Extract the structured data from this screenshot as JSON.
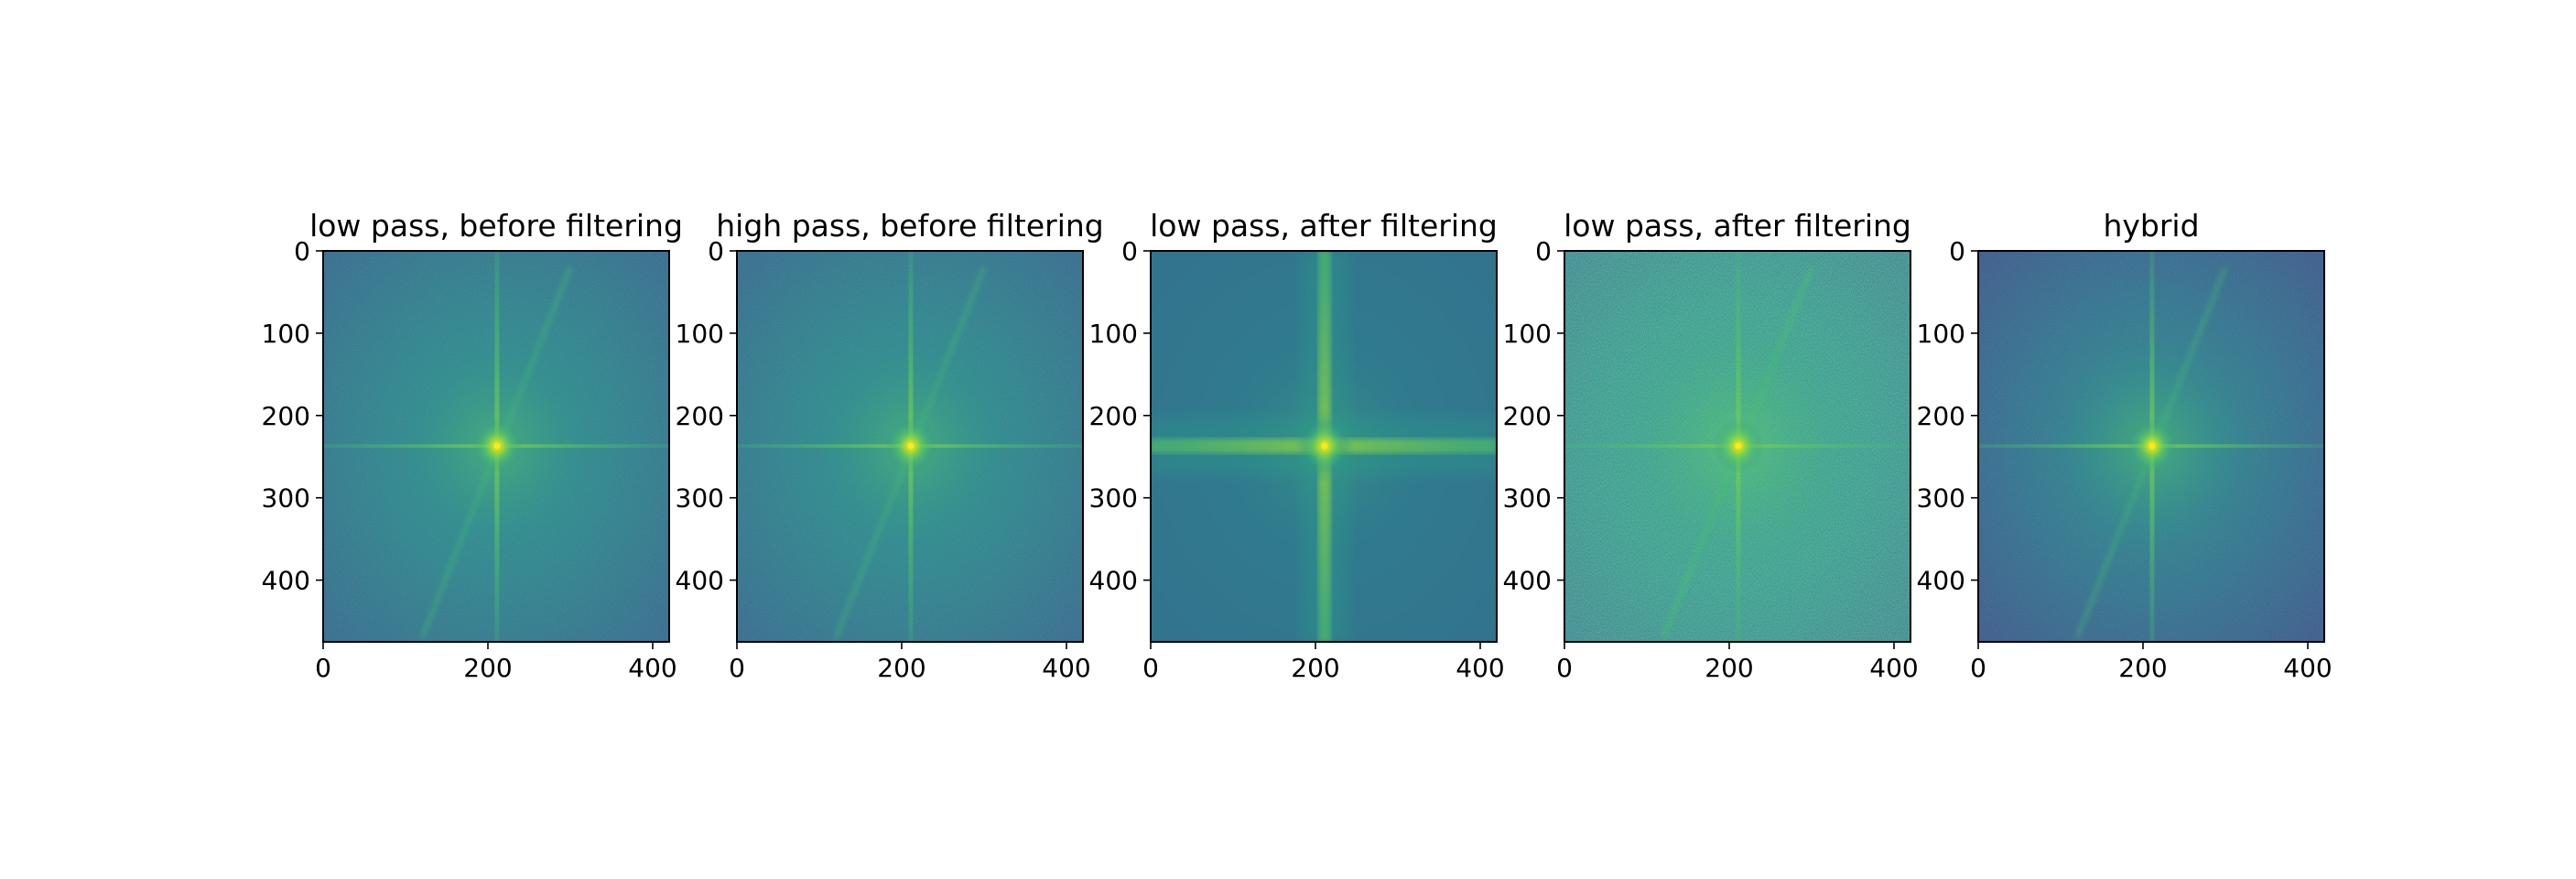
{
  "chart_data": [
    {
      "type": "heatmap",
      "title": "low pass, before filtering",
      "image_shape": [
        475,
        420
      ],
      "center": [
        211,
        237
      ],
      "xlabel": "",
      "ylabel": "",
      "xlim": [
        0,
        420
      ],
      "ylim": [
        475,
        0
      ],
      "xticks": [
        0,
        200,
        400
      ],
      "yticks": [
        0,
        100,
        200,
        300,
        400
      ],
      "colormap": "viridis",
      "content": "log-magnitude Fourier spectrum with bright center, cross through center and diagonal streak"
    },
    {
      "type": "heatmap",
      "title": "high pass, before filtering",
      "image_shape": [
        475,
        420
      ],
      "center": [
        211,
        237
      ],
      "xlabel": "",
      "ylabel": "",
      "xlim": [
        0,
        420
      ],
      "ylim": [
        475,
        0
      ],
      "xticks": [
        0,
        200,
        400
      ],
      "yticks": [
        0,
        100,
        200,
        300,
        400
      ],
      "colormap": "viridis",
      "content": "log-magnitude Fourier spectrum with bright center, cross through center and diagonal streak"
    },
    {
      "type": "heatmap",
      "title": "low pass, after filtering",
      "image_shape": [
        475,
        420
      ],
      "center": [
        211,
        237
      ],
      "xlabel": "",
      "ylabel": "",
      "xlim": [
        0,
        420
      ],
      "ylim": [
        475,
        0
      ],
      "xticks": [
        0,
        200,
        400
      ],
      "yticks": [
        0,
        100,
        200,
        300,
        400
      ],
      "colormap": "viridis",
      "content": "smooth spectrum with strong cross through center"
    },
    {
      "type": "heatmap",
      "title": "low pass, after filtering",
      "image_shape": [
        475,
        420
      ],
      "center": [
        211,
        237
      ],
      "xlabel": "",
      "ylabel": "",
      "xlim": [
        0,
        420
      ],
      "ylim": [
        475,
        0
      ],
      "xticks": [
        0,
        200,
        400
      ],
      "yticks": [
        0,
        100,
        200,
        300,
        400
      ],
      "colormap": "viridis",
      "content": "noisy spectrum, brighter overall, diagonal streak"
    },
    {
      "type": "heatmap",
      "title": "hybrid",
      "image_shape": [
        475,
        420
      ],
      "center": [
        211,
        237
      ],
      "xlabel": "",
      "ylabel": "",
      "xlim": [
        0,
        420
      ],
      "ylim": [
        475,
        0
      ],
      "xticks": [
        0,
        200,
        400
      ],
      "yticks": [
        0,
        100,
        200,
        300,
        400
      ],
      "colormap": "viridis",
      "content": "spectrum with darker corners, bright center and cross"
    }
  ],
  "colors": {
    "low": "#3b528b",
    "mid": "#21918c",
    "high": "#5ec962",
    "peak": "#fde725"
  }
}
